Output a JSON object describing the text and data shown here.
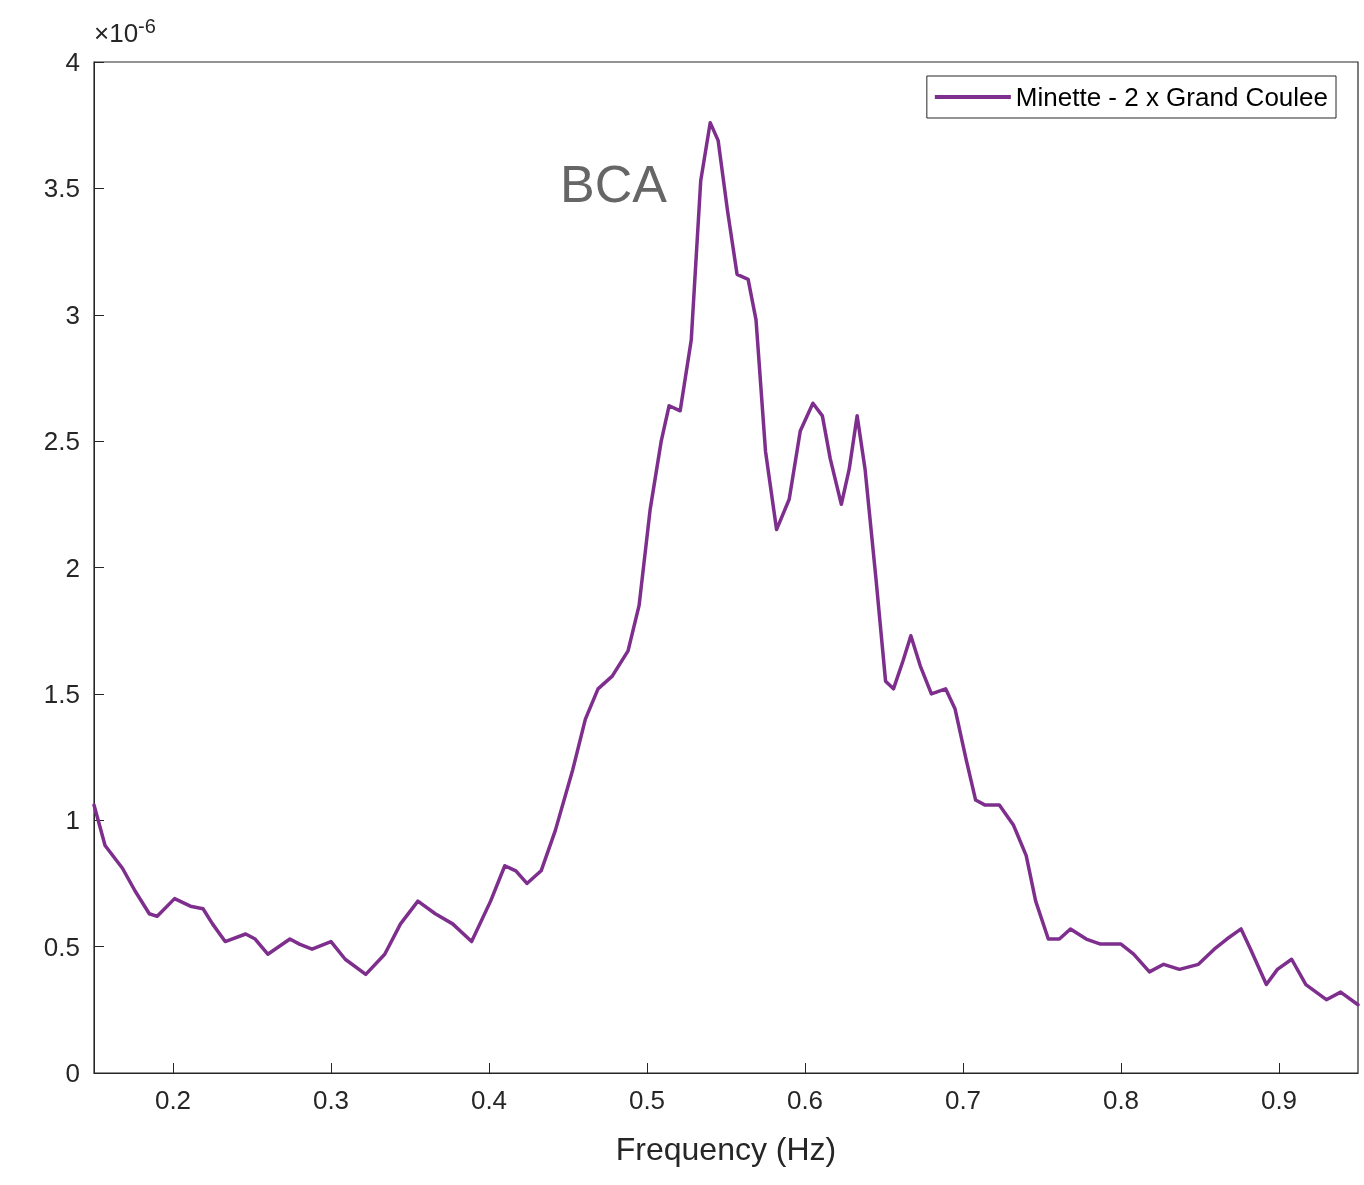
{
  "chart_data": {
    "type": "line",
    "xlabel": "Frequency (Hz)",
    "x": [
      0.15,
      0.157,
      0.168,
      0.176,
      0.185,
      0.19,
      0.201,
      0.211,
      0.219,
      0.225,
      0.233,
      0.246,
      0.252,
      0.26,
      0.274,
      0.28,
      0.288,
      0.3,
      0.309,
      0.322,
      0.334,
      0.344,
      0.355,
      0.366,
      0.377,
      0.389,
      0.401,
      0.41,
      0.417,
      0.424,
      0.433,
      0.442,
      0.453,
      0.461,
      0.469,
      0.478,
      0.488,
      0.495,
      0.502,
      0.509,
      0.514,
      0.521,
      0.528,
      0.534,
      0.54,
      0.545,
      0.551,
      0.557,
      0.564,
      0.569,
      0.575,
      0.582,
      0.59,
      0.597,
      0.605,
      0.611,
      0.616,
      0.623,
      0.628,
      0.633,
      0.638,
      0.645,
      0.651,
      0.656,
      0.662,
      0.667,
      0.673,
      0.68,
      0.689,
      0.695,
      0.702,
      0.708,
      0.714,
      0.723,
      0.732,
      0.74,
      0.746,
      0.754,
      0.761,
      0.768,
      0.778,
      0.787,
      0.8,
      0.808,
      0.818,
      0.827,
      0.837,
      0.849,
      0.859,
      0.867,
      0.876,
      0.882,
      0.892,
      0.899,
      0.908,
      0.917,
      0.93,
      0.939,
      0.95
    ],
    "series": [
      {
        "name": "Minette - 2 x Grand Coulee",
        "color": "#7e2f8e",
        "values": [
          1.06,
          0.9,
          0.81,
          0.72,
          0.63,
          0.62,
          0.69,
          0.66,
          0.65,
          0.59,
          0.52,
          0.55,
          0.53,
          0.47,
          0.53,
          0.51,
          0.49,
          0.52,
          0.45,
          0.39,
          0.47,
          0.59,
          0.68,
          0.63,
          0.59,
          0.52,
          0.68,
          0.82,
          0.8,
          0.75,
          0.8,
          0.96,
          1.2,
          1.4,
          1.52,
          1.57,
          1.67,
          1.85,
          2.23,
          2.5,
          2.64,
          2.62,
          2.9,
          3.53,
          3.76,
          3.69,
          3.41,
          3.16,
          3.14,
          2.98,
          2.46,
          2.15,
          2.27,
          2.54,
          2.65,
          2.6,
          2.43,
          2.25,
          2.39,
          2.6,
          2.39,
          1.95,
          1.55,
          1.52,
          1.63,
          1.73,
          1.61,
          1.5,
          1.52,
          1.44,
          1.24,
          1.08,
          1.06,
          1.06,
          0.98,
          0.86,
          0.68,
          0.53,
          0.53,
          0.57,
          0.53,
          0.51,
          0.51,
          0.47,
          0.4,
          0.43,
          0.41,
          0.43,
          0.49,
          0.53,
          0.57,
          0.49,
          0.35,
          0.41,
          0.45,
          0.35,
          0.29,
          0.32,
          0.27
        ]
      }
    ],
    "xlim": [
      0.15,
      0.95
    ],
    "xticks": [
      0.2,
      0.3,
      0.4,
      0.5,
      0.6,
      0.7,
      0.8,
      0.9
    ],
    "ylim": [
      0,
      4
    ],
    "yticks": [
      0,
      0.5,
      1,
      1.5,
      2,
      2.5,
      3,
      3.5,
      4
    ],
    "annotations": [
      "×10$^{-6}$",
      "BCA"
    ],
    "grid": false,
    "legend": "top right",
    "marker": "none",
    "line_style": "solid"
  }
}
